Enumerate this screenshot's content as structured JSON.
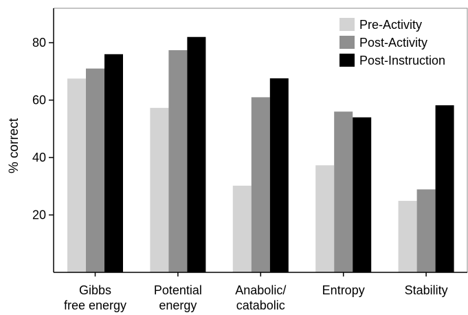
{
  "chart_data": {
    "type": "bar",
    "title": "",
    "xlabel": "",
    "ylabel": "% correct",
    "ylim": [
      0,
      92
    ],
    "yticks": [
      20,
      40,
      60,
      80
    ],
    "grid": false,
    "legend_position": "top-right",
    "categories": [
      [
        "Gibbs",
        "free energy"
      ],
      [
        "Potential",
        "energy"
      ],
      [
        "Anabolic/",
        "catabolic"
      ],
      [
        "Entropy"
      ],
      [
        "Stability"
      ]
    ],
    "series": [
      {
        "name": "Pre-Activity",
        "color": "#d3d3d3",
        "values": [
          67.5,
          57.3,
          30.2,
          37.3,
          24.9
        ]
      },
      {
        "name": "Post-Activity",
        "color": "#8f8f8f",
        "values": [
          71.0,
          77.4,
          61.0,
          56.0,
          28.9
        ]
      },
      {
        "name": "Post-Instruction",
        "color": "#000000",
        "values": [
          76.0,
          82.0,
          67.6,
          54.0,
          58.2
        ]
      }
    ]
  }
}
